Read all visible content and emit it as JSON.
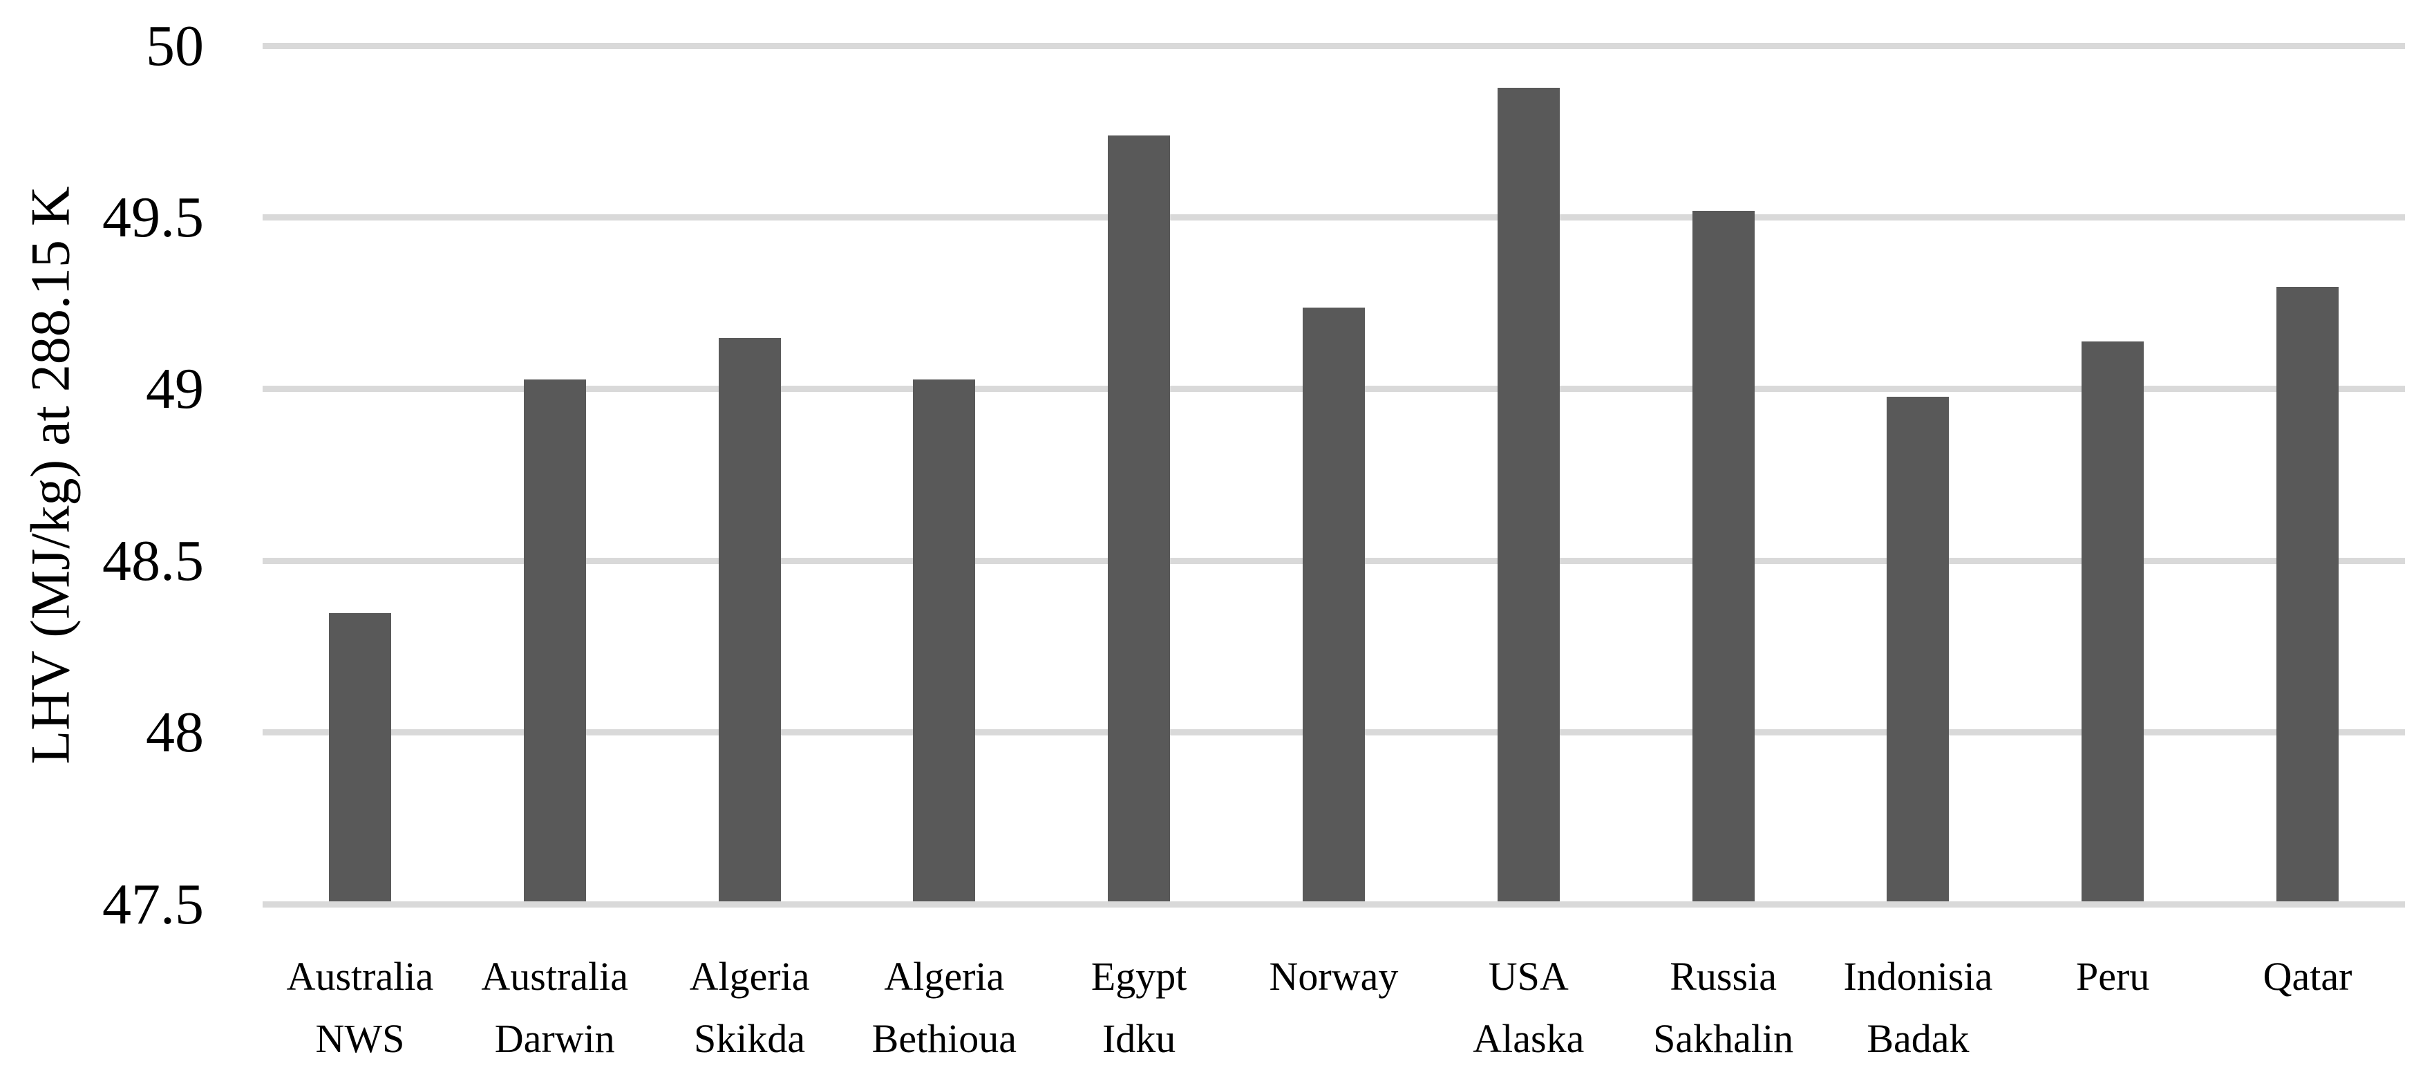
{
  "chart_data": {
    "type": "bar",
    "title": "",
    "ylabel": "LHV (MJ/kg) at 288.15 K",
    "xlabel": "",
    "ylim": [
      47.5,
      50
    ],
    "yticks": [
      47.5,
      48,
      48.5,
      49,
      49.5,
      50
    ],
    "ytick_labels": [
      "47.5",
      "48",
      "48.5",
      "49",
      "49.5",
      "50"
    ],
    "grid": "horizontal-only",
    "legend_position": "none",
    "bar_color": "#595959",
    "gridline_color": "#d9d9d9",
    "categories": [
      "Australia NWS",
      "Australia Darwin",
      "Algeria Skikda",
      "Algeria Bethioua",
      "Egypt Idku",
      "Norway",
      "USA Alaska",
      "Russia Sakhalin",
      "Indonisia Badak",
      "Peru",
      "Qatar"
    ],
    "category_lines": [
      [
        "Australia",
        "NWS"
      ],
      [
        "Australia",
        "Darwin"
      ],
      [
        "Algeria",
        "Skikda"
      ],
      [
        "Algeria",
        "Bethioua"
      ],
      [
        "Egypt",
        "Idku"
      ],
      [
        "Norway"
      ],
      [
        "USA",
        "Alaska"
      ],
      [
        "Russia",
        "Sakhalin"
      ],
      [
        "Indonisia",
        "Badak"
      ],
      [
        "Peru"
      ],
      [
        "Qatar"
      ]
    ],
    "values": [
      48.34,
      49.02,
      49.14,
      49.02,
      49.73,
      49.23,
      49.87,
      49.51,
      48.97,
      49.13,
      49.29
    ]
  }
}
